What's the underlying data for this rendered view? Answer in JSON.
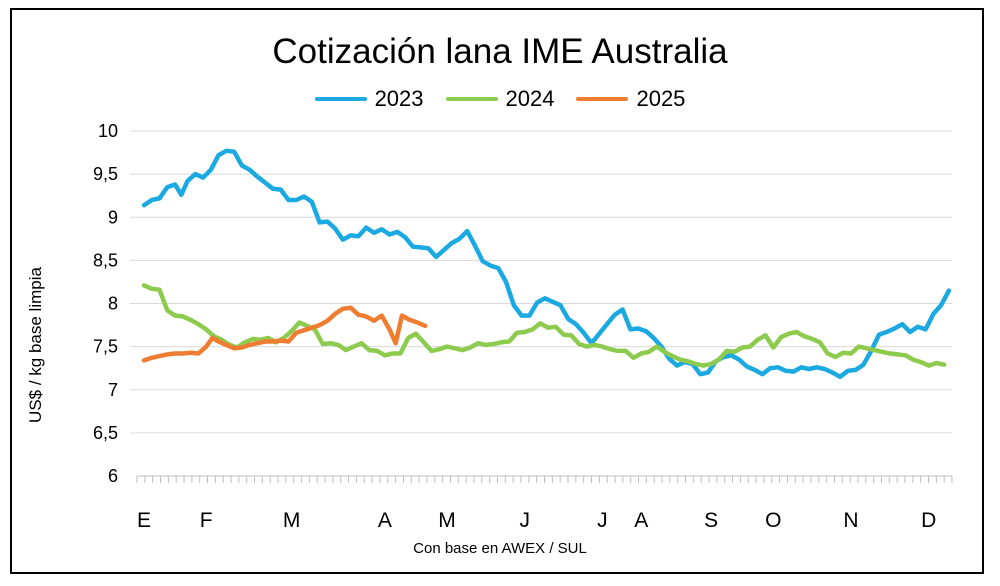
{
  "chart_data": {
    "type": "line",
    "title": "Cotización lana IME Australia",
    "xlabel": "Con base en AWEX / SUL",
    "ylabel": "US$ / kg base limpia",
    "ylim": [
      6,
      10
    ],
    "yticks": [
      "6",
      "6,5",
      "7",
      "7,5",
      "8",
      "8,5",
      "9",
      "9,5",
      "10"
    ],
    "ytick_values": [
      6,
      6.5,
      7,
      7.5,
      8,
      8.5,
      9,
      9.5,
      10
    ],
    "xlim": [
      0,
      52
    ],
    "month_labels": [
      {
        "label": "E",
        "x": 0
      },
      {
        "label": "F",
        "x": 4
      },
      {
        "label": "M",
        "x": 9.5
      },
      {
        "label": "A",
        "x": 15.5
      },
      {
        "label": "M",
        "x": 19.5
      },
      {
        "label": "J",
        "x": 24.5
      },
      {
        "label": "J",
        "x": 29.5
      },
      {
        "label": "A",
        "x": 32
      },
      {
        "label": "S",
        "x": 36.5
      },
      {
        "label": "O",
        "x": 40.5
      },
      {
        "label": "N",
        "x": 45.5
      },
      {
        "label": "D",
        "x": 50.5
      }
    ],
    "grid": true,
    "legend": "top-center",
    "series": [
      {
        "name": "2023",
        "color": "#1BA9E1",
        "points": [
          [
            0,
            9.14
          ],
          [
            0.5,
            9.2
          ],
          [
            1,
            9.22
          ],
          [
            1.5,
            9.35
          ],
          [
            2,
            9.38
          ],
          [
            2.4,
            9.26
          ],
          [
            2.8,
            9.42
          ],
          [
            3.3,
            9.5
          ],
          [
            3.8,
            9.46
          ],
          [
            4.3,
            9.55
          ],
          [
            4.8,
            9.72
          ],
          [
            5.3,
            9.77
          ],
          [
            5.8,
            9.76
          ],
          [
            6.3,
            9.6
          ],
          [
            6.8,
            9.55
          ],
          [
            7.3,
            9.47
          ],
          [
            7.8,
            9.4
          ],
          [
            8.3,
            9.33
          ],
          [
            8.8,
            9.32
          ],
          [
            9.3,
            9.2
          ],
          [
            9.8,
            9.2
          ],
          [
            10.3,
            9.24
          ],
          [
            10.8,
            9.18
          ],
          [
            11.3,
            8.94
          ],
          [
            11.8,
            8.95
          ],
          [
            12.3,
            8.87
          ],
          [
            12.8,
            8.74
          ],
          [
            13.3,
            8.79
          ],
          [
            13.8,
            8.78
          ],
          [
            14.3,
            8.88
          ],
          [
            14.8,
            8.82
          ],
          [
            15.3,
            8.86
          ],
          [
            15.8,
            8.8
          ],
          [
            16.3,
            8.83
          ],
          [
            16.8,
            8.77
          ],
          [
            17.3,
            8.66
          ],
          [
            17.8,
            8.65
          ],
          [
            18.3,
            8.64
          ],
          [
            18.8,
            8.54
          ],
          [
            19.3,
            8.62
          ],
          [
            19.8,
            8.7
          ],
          [
            20.3,
            8.75
          ],
          [
            20.8,
            8.84
          ],
          [
            21.3,
            8.67
          ],
          [
            21.8,
            8.49
          ],
          [
            22.3,
            8.44
          ],
          [
            22.8,
            8.41
          ],
          [
            23.3,
            8.25
          ],
          [
            23.8,
            7.98
          ],
          [
            24.3,
            7.86
          ],
          [
            24.8,
            7.86
          ],
          [
            25.3,
            8.01
          ],
          [
            25.8,
            8.06
          ],
          [
            26.3,
            8.02
          ],
          [
            26.8,
            7.98
          ],
          [
            27.3,
            7.82
          ],
          [
            27.8,
            7.76
          ],
          [
            28.3,
            7.66
          ],
          [
            28.8,
            7.54
          ],
          [
            29.3,
            7.65
          ],
          [
            29.8,
            7.76
          ],
          [
            30.3,
            7.87
          ],
          [
            30.8,
            7.93
          ],
          [
            31.3,
            7.7
          ],
          [
            31.8,
            7.71
          ],
          [
            32.3,
            7.68
          ],
          [
            32.8,
            7.6
          ],
          [
            33.3,
            7.5
          ],
          [
            33.8,
            7.36
          ],
          [
            34.3,
            7.28
          ],
          [
            34.8,
            7.32
          ],
          [
            35.3,
            7.3
          ],
          [
            35.8,
            7.18
          ],
          [
            36.3,
            7.2
          ],
          [
            36.8,
            7.33
          ],
          [
            37.3,
            7.38
          ],
          [
            37.8,
            7.4
          ],
          [
            38.3,
            7.35
          ],
          [
            38.8,
            7.27
          ],
          [
            39.3,
            7.23
          ],
          [
            39.8,
            7.18
          ],
          [
            40.3,
            7.25
          ],
          [
            40.8,
            7.26
          ],
          [
            41.3,
            7.22
          ],
          [
            41.8,
            7.21
          ],
          [
            42.3,
            7.26
          ],
          [
            42.8,
            7.24
          ],
          [
            43.3,
            7.26
          ],
          [
            43.8,
            7.24
          ],
          [
            44.3,
            7.2
          ],
          [
            44.8,
            7.15
          ],
          [
            45.3,
            7.22
          ],
          [
            45.8,
            7.23
          ],
          [
            46.3,
            7.29
          ],
          [
            46.8,
            7.45
          ],
          [
            47.3,
            7.64
          ],
          [
            47.8,
            7.67
          ],
          [
            48.3,
            7.71
          ],
          [
            48.8,
            7.76
          ],
          [
            49.3,
            7.67
          ],
          [
            49.8,
            7.73
          ],
          [
            50.3,
            7.7
          ],
          [
            50.8,
            7.88
          ],
          [
            51.3,
            7.98
          ],
          [
            51.8,
            8.15
          ]
        ]
      },
      {
        "name": "2024",
        "color": "#8DCB4E",
        "points": [
          [
            0,
            8.21
          ],
          [
            0.5,
            8.17
          ],
          [
            1,
            8.16
          ],
          [
            1.5,
            7.92
          ],
          [
            2,
            7.86
          ],
          [
            2.5,
            7.85
          ],
          [
            3,
            7.81
          ],
          [
            3.5,
            7.76
          ],
          [
            4,
            7.7
          ],
          [
            4.5,
            7.62
          ],
          [
            5,
            7.58
          ],
          [
            5.5,
            7.52
          ],
          [
            6,
            7.49
          ],
          [
            6.5,
            7.55
          ],
          [
            7,
            7.59
          ],
          [
            7.5,
            7.58
          ],
          [
            8,
            7.6
          ],
          [
            8.5,
            7.55
          ],
          [
            9,
            7.6
          ],
          [
            9.5,
            7.68
          ],
          [
            10,
            7.78
          ],
          [
            10.5,
            7.74
          ],
          [
            11,
            7.7
          ],
          [
            11.5,
            7.53
          ],
          [
            12,
            7.54
          ],
          [
            12.5,
            7.52
          ],
          [
            13,
            7.46
          ],
          [
            13.5,
            7.5
          ],
          [
            14,
            7.54
          ],
          [
            14.5,
            7.46
          ],
          [
            15,
            7.45
          ],
          [
            15.5,
            7.4
          ],
          [
            16,
            7.42
          ],
          [
            16.5,
            7.42
          ],
          [
            17,
            7.6
          ],
          [
            17.5,
            7.65
          ],
          [
            18,
            7.55
          ],
          [
            18.5,
            7.45
          ],
          [
            19,
            7.47
          ],
          [
            19.5,
            7.5
          ],
          [
            20,
            7.48
          ],
          [
            20.5,
            7.46
          ],
          [
            21,
            7.49
          ],
          [
            21.5,
            7.54
          ],
          [
            22,
            7.52
          ],
          [
            22.5,
            7.53
          ],
          [
            23,
            7.55
          ],
          [
            23.5,
            7.56
          ],
          [
            24,
            7.66
          ],
          [
            24.5,
            7.67
          ],
          [
            25,
            7.7
          ],
          [
            25.5,
            7.77
          ],
          [
            26,
            7.72
          ],
          [
            26.5,
            7.73
          ],
          [
            27,
            7.64
          ],
          [
            27.5,
            7.63
          ],
          [
            28,
            7.53
          ],
          [
            28.5,
            7.5
          ],
          [
            29,
            7.52
          ],
          [
            29.5,
            7.5
          ],
          [
            30,
            7.47
          ],
          [
            30.5,
            7.45
          ],
          [
            31,
            7.45
          ],
          [
            31.5,
            7.37
          ],
          [
            32,
            7.42
          ],
          [
            32.5,
            7.44
          ],
          [
            33,
            7.5
          ],
          [
            33.5,
            7.44
          ],
          [
            34,
            7.39
          ],
          [
            34.5,
            7.35
          ],
          [
            35,
            7.33
          ],
          [
            35.5,
            7.3
          ],
          [
            36,
            7.28
          ],
          [
            36.5,
            7.3
          ],
          [
            37,
            7.35
          ],
          [
            37.5,
            7.45
          ],
          [
            38,
            7.44
          ],
          [
            38.5,
            7.49
          ],
          [
            39,
            7.5
          ],
          [
            39.5,
            7.58
          ],
          [
            40,
            7.63
          ],
          [
            40.5,
            7.49
          ],
          [
            41,
            7.61
          ],
          [
            41.5,
            7.65
          ],
          [
            42,
            7.67
          ],
          [
            42.5,
            7.62
          ],
          [
            43,
            7.59
          ],
          [
            43.5,
            7.55
          ],
          [
            44,
            7.42
          ],
          [
            44.5,
            7.38
          ],
          [
            45,
            7.43
          ],
          [
            45.5,
            7.42
          ],
          [
            46,
            7.5
          ],
          [
            46.5,
            7.48
          ],
          [
            47,
            7.46
          ],
          [
            47.5,
            7.44
          ],
          [
            48,
            7.42
          ],
          [
            48.5,
            7.41
          ],
          [
            49,
            7.4
          ],
          [
            49.5,
            7.35
          ],
          [
            50,
            7.32
          ],
          [
            50.5,
            7.28
          ],
          [
            51,
            7.31
          ],
          [
            51.5,
            7.29
          ]
        ]
      },
      {
        "name": "2025",
        "color": "#EE7D31",
        "points": [
          [
            0,
            7.34
          ],
          [
            0.5,
            7.37
          ],
          [
            1,
            7.39
          ],
          [
            1.5,
            7.41
          ],
          [
            2,
            7.42
          ],
          [
            2.5,
            7.42
          ],
          [
            3,
            7.43
          ],
          [
            3.5,
            7.42
          ],
          [
            4,
            7.5
          ],
          [
            4.4,
            7.6
          ],
          [
            4.8,
            7.56
          ],
          [
            5.3,
            7.52
          ],
          [
            5.8,
            7.48
          ],
          [
            6.3,
            7.49
          ],
          [
            6.8,
            7.52
          ],
          [
            7.3,
            7.54
          ],
          [
            7.8,
            7.56
          ],
          [
            8.3,
            7.56
          ],
          [
            8.8,
            7.57
          ],
          [
            9.3,
            7.56
          ],
          [
            9.8,
            7.66
          ],
          [
            10.3,
            7.69
          ],
          [
            10.8,
            7.72
          ],
          [
            11.3,
            7.75
          ],
          [
            11.8,
            7.8
          ],
          [
            12.3,
            7.88
          ],
          [
            12.8,
            7.94
          ],
          [
            13.3,
            7.95
          ],
          [
            13.8,
            7.87
          ],
          [
            14.3,
            7.85
          ],
          [
            14.8,
            7.8
          ],
          [
            15.3,
            7.86
          ],
          [
            15.8,
            7.7
          ],
          [
            16.2,
            7.54
          ],
          [
            16.6,
            7.86
          ],
          [
            17.1,
            7.81
          ],
          [
            17.6,
            7.78
          ],
          [
            18.1,
            7.74
          ]
        ]
      }
    ]
  }
}
